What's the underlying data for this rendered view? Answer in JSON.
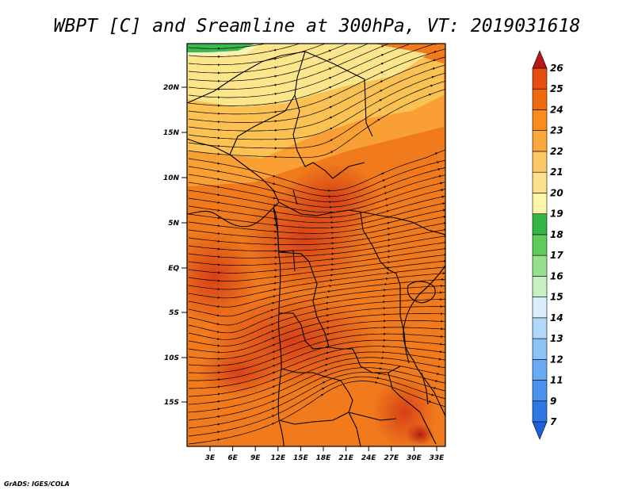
{
  "title": "WBPT [C] and Sreamline at 300hPa, VT: 2019031618",
  "credit": "GrADS: IGES/COLA",
  "map": {
    "lat_ticks": [
      "20N",
      "15N",
      "10N",
      "5N",
      "EQ",
      "5S",
      "10S",
      "15S"
    ],
    "lon_ticks": [
      "3E",
      "6E",
      "9E",
      "12E",
      "15E",
      "18E",
      "21E",
      "24E",
      "27E",
      "30E",
      "33E"
    ]
  },
  "colorbar": {
    "labels": [
      "7",
      "9",
      "11",
      "12",
      "13",
      "14",
      "15",
      "16",
      "17",
      "18",
      "19",
      "20",
      "21",
      "22",
      "23",
      "24",
      "25",
      "26"
    ],
    "colors": [
      "#1f5fd8",
      "#2e78e6",
      "#4a93ef",
      "#6aaaf4",
      "#8cc2f7",
      "#b0d8fa",
      "#d8eefc",
      "#c8f0c4",
      "#96e08e",
      "#5fcb5a",
      "#33b845",
      "#fff5a8",
      "#fde089",
      "#fcc764",
      "#faa83a",
      "#f98c1a",
      "#f06b10",
      "#e54d12",
      "#d3321a",
      "#b61816"
    ]
  }
}
